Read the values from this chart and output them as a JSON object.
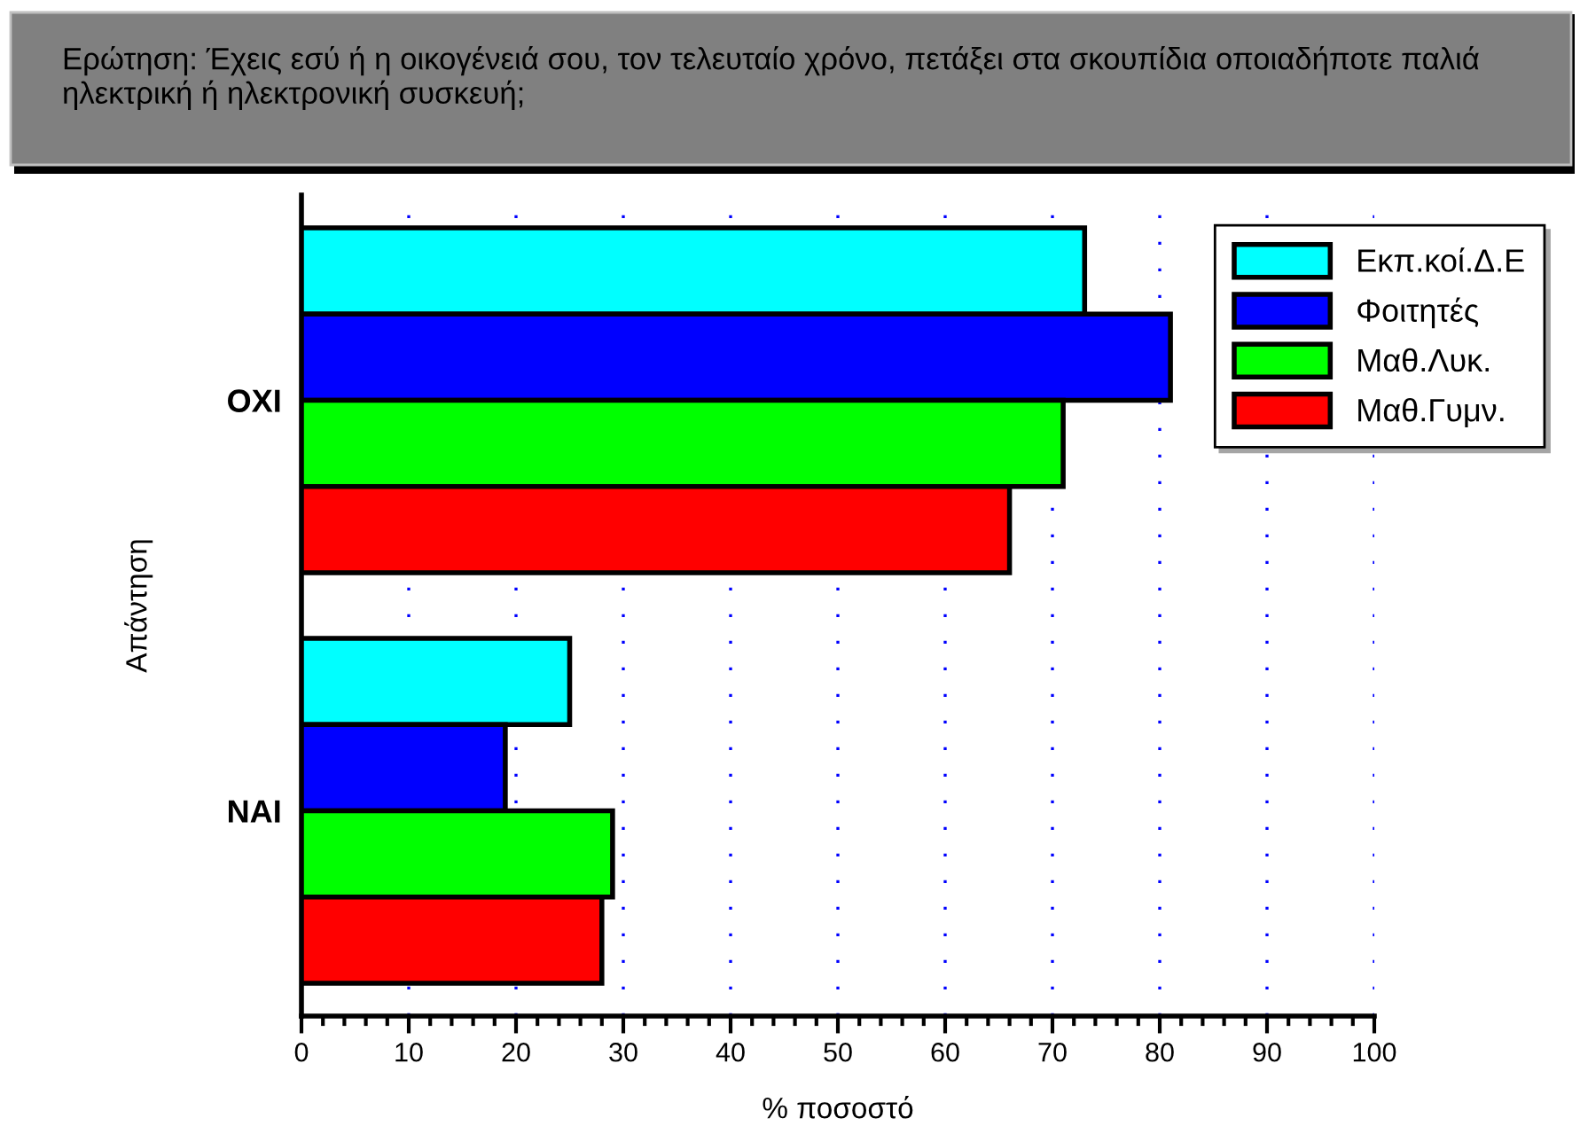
{
  "chart_data": {
    "type": "bar",
    "orientation": "horizontal",
    "title": "Ερώτηση: Έχεις εσύ ή η οικογένειά σου, τον τελευταίο χρόνο, πετάξει στα σκουπίδια οποιαδήποτε παλιά ηλεκτρική ή ηλεκτρονική συσκευή;",
    "xlabel": "% ποσοστό",
    "ylabel": "Απάντηση",
    "categories": [
      "ΟΧΙ",
      "ΝΑΙ"
    ],
    "series": [
      {
        "name": "Εκπ.κοί.Δ.Ε",
        "color": "#00ffff",
        "values": [
          73,
          25
        ]
      },
      {
        "name": "Φοιτητές",
        "color": "#0000ff",
        "values": [
          81,
          19
        ]
      },
      {
        "name": "Μαθ.Λυκ.",
        "color": "#00ff00",
        "values": [
          71,
          29
        ]
      },
      {
        "name": "Μαθ.Γυμν.",
        "color": "#ff0000",
        "values": [
          66,
          28
        ]
      }
    ],
    "xlim": [
      0,
      100
    ],
    "xticks": [
      0,
      10,
      20,
      30,
      40,
      50,
      60,
      70,
      80,
      90,
      100
    ],
    "grid": "x",
    "legend": "top right"
  }
}
